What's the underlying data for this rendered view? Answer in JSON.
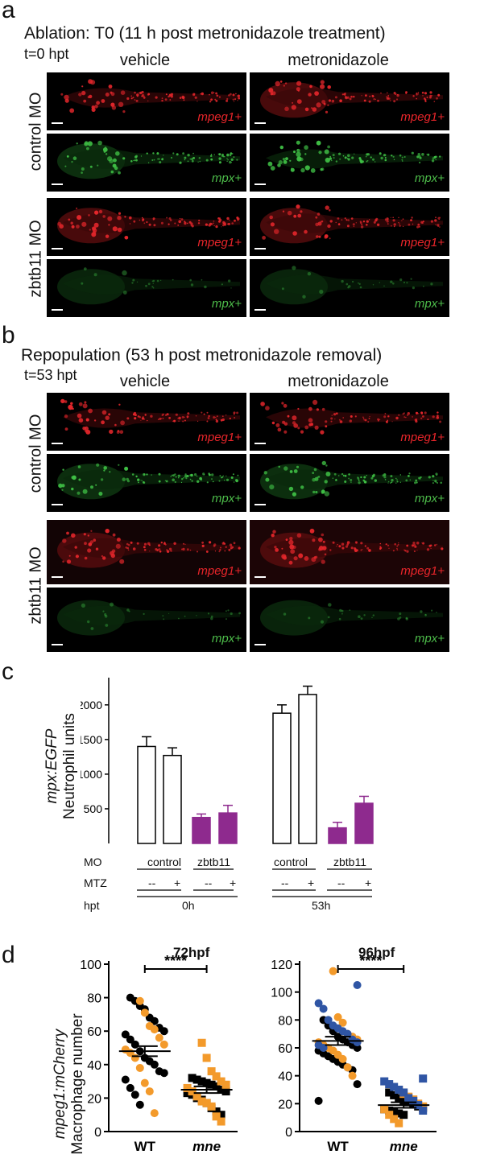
{
  "panel_a": {
    "letter": "a",
    "title": "Ablation: T0 (11 h post metronidazole treatment)",
    "time": "t=0 hpt",
    "cols": [
      "vehicle",
      "metronidazole"
    ],
    "rows": [
      "control MO",
      "zbtb11 MO"
    ],
    "marker_red": "mpeg1+",
    "marker_green": "mpx+"
  },
  "panel_b": {
    "letter": "b",
    "title": "Repopulation (53 h post metronidazole removal)",
    "time": "t=53 hpt",
    "cols": [
      "vehicle",
      "metronidazole"
    ],
    "rows": [
      "control MO",
      "zbtb11 MO"
    ],
    "marker_red": "mpeg1+",
    "marker_green": "mpx+"
  },
  "panel_c": {
    "letter": "c",
    "ylabel_line1": "mpx:EGFP",
    "ylabel_line2": "Neutrophil units",
    "row_mo": "MO",
    "row_mtz": "MTZ",
    "row_hpt": "hpt",
    "mo_groups": [
      "control",
      "zbtb11",
      "control",
      "zbtb11"
    ],
    "mtz_labels": [
      "--",
      "+",
      "--",
      "+",
      "--",
      "+",
      "--",
      "+"
    ],
    "hpt_groups": [
      "0h",
      "53h"
    ],
    "colors": {
      "control": "#ffffff",
      "zbtb11": "#8e2a8e",
      "stroke_zbtb11": "#8e2a8e"
    }
  },
  "panel_d": {
    "letter": "d",
    "ylabel_line1": "mpeg1:mCherry",
    "ylabel_line2": "Macrophage number",
    "left_title": "72hpf",
    "right_title": "96hpf",
    "sig": "****",
    "x_wt": "WT",
    "x_mne": "mne",
    "colors": {
      "black": "#000000",
      "orange": "#f39a2b",
      "blue": "#2f55a4"
    }
  },
  "chart_data": [
    {
      "type": "bar",
      "categories": [
        "control --",
        "control +",
        "zbtb11 --",
        "zbtb11 +",
        "control --",
        "control +",
        "zbtb11 --",
        "zbtb11 +"
      ],
      "values": [
        1400,
        1270,
        375,
        440,
        1880,
        2150,
        225,
        580
      ],
      "errors": [
        140,
        110,
        50,
        110,
        120,
        120,
        80,
        100
      ],
      "ylim": [
        0,
        2300
      ],
      "yticks": [
        500,
        1000,
        1500,
        2000
      ]
    },
    {
      "type": "scatter",
      "title": "72hpf",
      "categories": [
        "WT",
        "mne"
      ],
      "ylim": [
        0,
        100
      ],
      "yticks": [
        0,
        20,
        40,
        60,
        80,
        100
      ],
      "means": [
        48,
        25
      ],
      "sem": [
        3,
        2
      ],
      "series": [
        {
          "group": "WT",
          "black": [
            80,
            78,
            75,
            73,
            68,
            66,
            62,
            60,
            58,
            55,
            52,
            48,
            44,
            42,
            40,
            36,
            35,
            31,
            26,
            22,
            16
          ],
          "orange": [
            78,
            71,
            63,
            61,
            56,
            52,
            49,
            47,
            44,
            38,
            29,
            24,
            11
          ]
        },
        {
          "group": "mne",
          "black": [
            32,
            31,
            30,
            29,
            28,
            27,
            25,
            24,
            23,
            22,
            20,
            19,
            17,
            14,
            12,
            10
          ],
          "orange": [
            53,
            44,
            36,
            33,
            30,
            28,
            26,
            24,
            21,
            18,
            17,
            15,
            9,
            6
          ]
        }
      ]
    },
    {
      "type": "scatter",
      "title": "96hpf",
      "categories": [
        "WT",
        "mne"
      ],
      "ylim": [
        0,
        120
      ],
      "yticks": [
        0,
        20,
        40,
        60,
        80,
        100,
        120
      ],
      "means": [
        65,
        19
      ],
      "sem": [
        3,
        2
      ],
      "series": [
        {
          "group": "WT",
          "black": [
            80,
            76,
            72,
            68,
            66,
            64,
            62,
            60,
            58,
            56,
            54,
            52,
            50,
            48,
            46,
            44,
            34,
            22
          ],
          "orange": [
            115,
            82,
            78,
            70,
            68,
            66,
            64,
            62,
            60,
            58,
            55,
            52,
            46,
            40
          ],
          "blue": [
            105,
            92,
            88,
            80,
            76,
            74,
            72,
            70,
            66,
            64,
            62,
            60
          ]
        },
        {
          "group": "mne",
          "black": [
            28,
            26,
            24,
            22,
            21,
            20,
            18,
            17,
            16,
            15,
            14,
            13,
            12
          ],
          "orange": [
            30,
            27,
            25,
            23,
            20,
            18,
            16,
            12,
            9,
            6
          ],
          "blue": [
            38,
            36,
            34,
            32,
            30,
            28,
            24,
            22,
            19,
            15
          ]
        }
      ]
    }
  ]
}
